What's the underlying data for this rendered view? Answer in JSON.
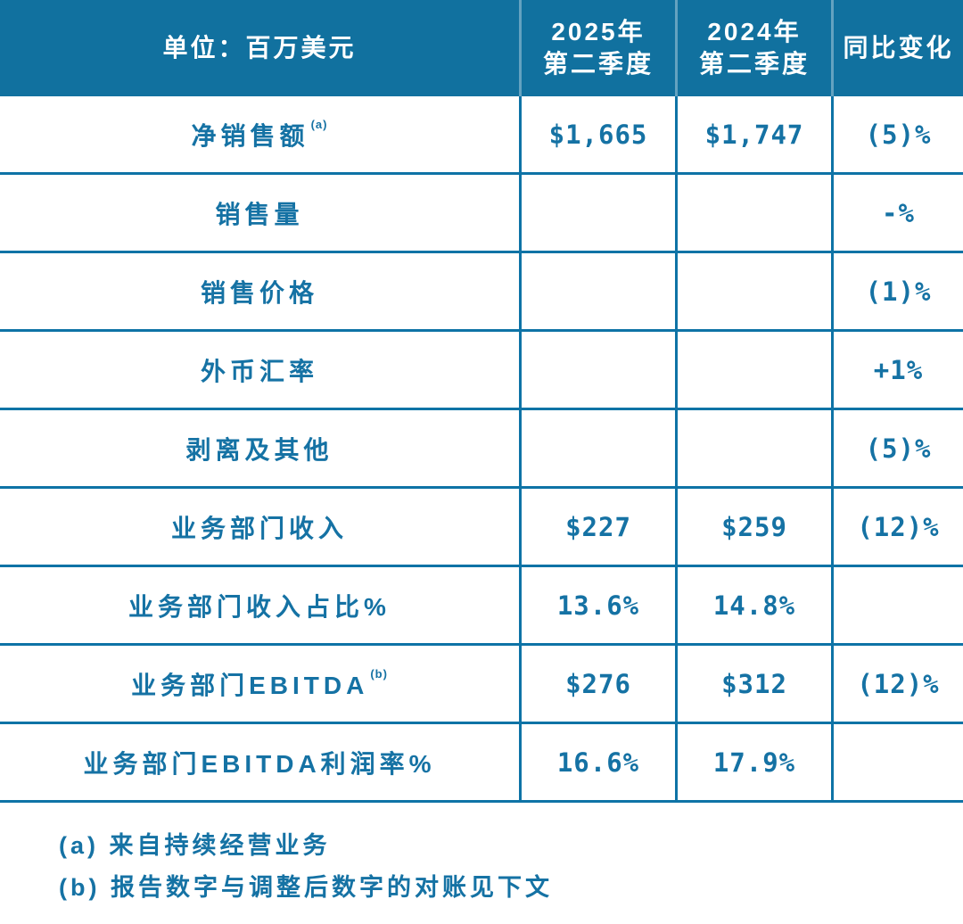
{
  "colors": {
    "header_bg": "#11719F",
    "text_blue": "#1572A4",
    "grid_line": "#0E73A6",
    "header_divider": "rgba(255,255,255,0.35)"
  },
  "table": {
    "header": {
      "unit_label": "单位：百万美元",
      "col_2025": {
        "line1": "2025年",
        "line2": "第二季度"
      },
      "col_2024": {
        "line1": "2024年",
        "line2": "第二季度"
      },
      "col_yoy": "同比变化"
    },
    "rows": [
      {
        "label": "净销售额",
        "sup": "(a)",
        "q2_2025": "$1,665",
        "q2_2024": "$1,747",
        "yoy": "(5)%"
      },
      {
        "label": "销售量",
        "sup": "",
        "q2_2025": "",
        "q2_2024": "",
        "yoy": "-%"
      },
      {
        "label": "销售价格",
        "sup": "",
        "q2_2025": "",
        "q2_2024": "",
        "yoy": "(1)%"
      },
      {
        "label": "外币汇率",
        "sup": "",
        "q2_2025": "",
        "q2_2024": "",
        "yoy": "+1%"
      },
      {
        "label": "剥离及其他",
        "sup": "",
        "q2_2025": "",
        "q2_2024": "",
        "yoy": "(5)%"
      },
      {
        "label": "业务部门收入",
        "sup": "",
        "q2_2025": "$227",
        "q2_2024": "$259",
        "yoy": "(12)%"
      },
      {
        "label": "业务部门收入占比%",
        "sup": "",
        "q2_2025": "13.6%",
        "q2_2024": "14.8%",
        "yoy": ""
      },
      {
        "label": "业务部门EBITDA",
        "sup": "(b)",
        "q2_2025": "$276",
        "q2_2024": "$312",
        "yoy": "(12)%"
      },
      {
        "label": "业务部门EBITDA利润率%",
        "sup": "",
        "q2_2025": "16.6%",
        "q2_2024": "17.9%",
        "yoy": ""
      }
    ]
  },
  "footnotes": {
    "a": "(a) 来自持续经营业务",
    "b": "(b) 报告数字与调整后数字的对账见下文"
  }
}
